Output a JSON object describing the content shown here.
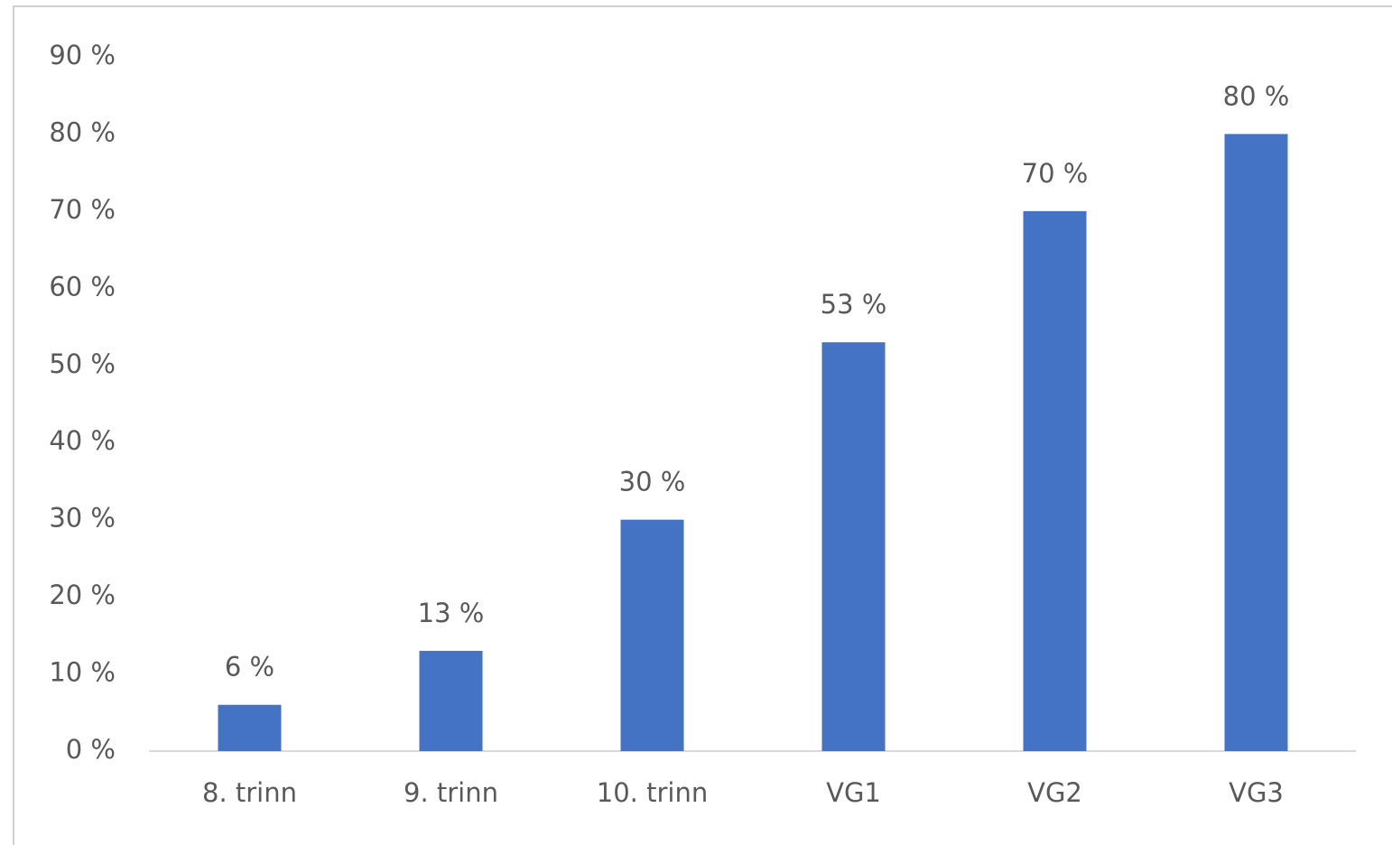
{
  "chart_data": {
    "type": "bar",
    "categories": [
      "8. trinn",
      "9. trinn",
      "10. trinn",
      "VG1",
      "VG2",
      "VG3"
    ],
    "values": [
      6,
      13,
      30,
      53,
      70,
      80
    ],
    "value_labels": [
      "6 %",
      "13 %",
      "30 %",
      "53 %",
      "70 %",
      "80 %"
    ],
    "color": "#4472c4",
    "ylim": [
      0,
      90
    ],
    "yticks": [
      {
        "value": 0,
        "label": "0 %"
      },
      {
        "value": 10,
        "label": "10 %"
      },
      {
        "value": 20,
        "label": "20 %"
      },
      {
        "value": 30,
        "label": "30 %"
      },
      {
        "value": 40,
        "label": "40 %"
      },
      {
        "value": 50,
        "label": "50 %"
      },
      {
        "value": 60,
        "label": "60 %"
      },
      {
        "value": 70,
        "label": "70 %"
      },
      {
        "value": 80,
        "label": "80 %"
      },
      {
        "value": 90,
        "label": "90 %"
      }
    ],
    "grid": false
  }
}
